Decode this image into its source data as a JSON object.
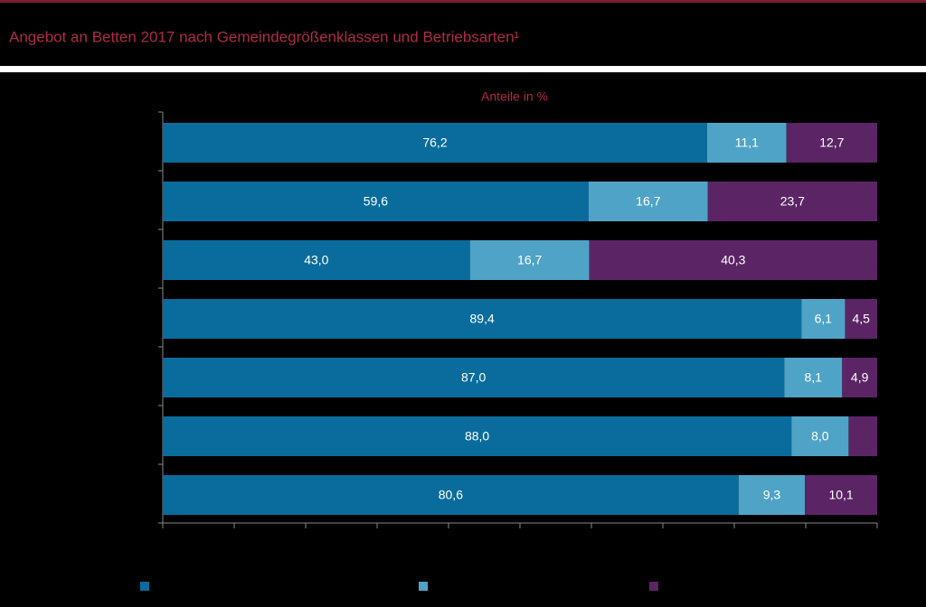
{
  "chart_data": {
    "type": "stacked-bar-horizontal",
    "title": "Angebot an Betten 2017 nach Gemeindegrößenklassen und Betriebsarten¹",
    "subtitle": "Anteile in %",
    "categories": [
      null,
      null,
      null,
      null,
      null,
      null,
      null
    ],
    "series": [
      {
        "color": "#0a6c9c",
        "values": [
          76.2,
          59.6,
          43.0,
          89.4,
          87.0,
          88.0,
          80.6
        ],
        "value_labels": [
          "76,2",
          "59,6",
          "43,0",
          "89,4",
          "87,0",
          "88,0",
          "80,6"
        ]
      },
      {
        "color": "#4fa3c6",
        "values": [
          11.1,
          16.7,
          16.7,
          6.1,
          8.1,
          8.0,
          9.3
        ],
        "value_labels": [
          "11,1",
          "16,7",
          "16,7",
          "6,1",
          "8,1",
          "8,0",
          "9,3"
        ]
      },
      {
        "color": "#5b2465",
        "values": [
          12.7,
          23.7,
          40.3,
          4.5,
          4.9,
          4.0,
          10.1
        ],
        "value_labels": [
          "12,7",
          "23,7",
          "40,3",
          "4,5",
          "4,9",
          null,
          "10,1"
        ]
      }
    ],
    "xlim": [
      0,
      100
    ],
    "xticks": [
      0,
      10,
      20,
      30,
      40,
      50,
      60,
      70,
      80,
      90,
      100
    ]
  }
}
